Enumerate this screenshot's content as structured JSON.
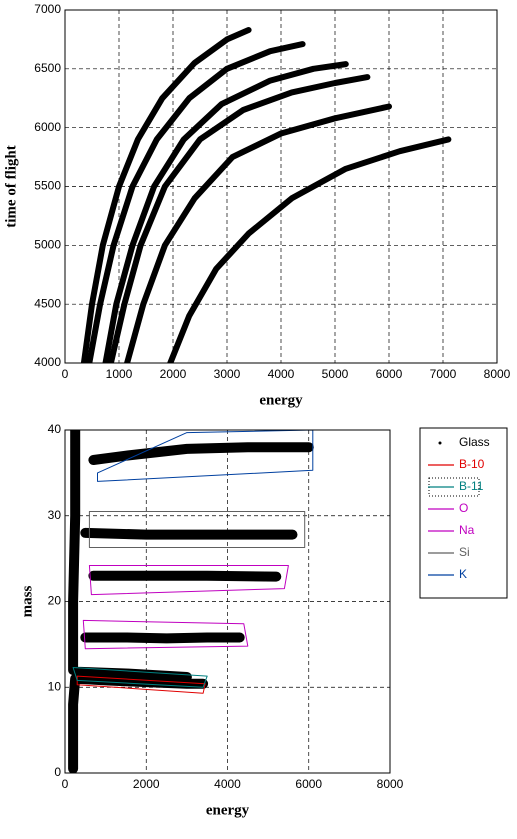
{
  "chart_data": [
    {
      "type": "scatter",
      "xlabel": "energy",
      "ylabel": "time of flight",
      "xlim": [
        0,
        8000
      ],
      "ylim": [
        4000,
        7000
      ],
      "xticks": [
        0,
        1000,
        2000,
        3000,
        4000,
        5000,
        6000,
        7000,
        8000
      ],
      "yticks": [
        4000,
        4500,
        5000,
        5500,
        6000,
        6500,
        7000
      ],
      "grid": true,
      "series": [
        {
          "color": "#000000",
          "marker": "band",
          "x": [
            350,
            500,
            700,
            1000,
            1350,
            1800,
            2400,
            3000,
            3400
          ],
          "values": [
            4000,
            4500,
            5000,
            5500,
            5900,
            6250,
            6550,
            6750,
            6830
          ]
        },
        {
          "color": "#000000",
          "marker": "band",
          "x": [
            450,
            650,
            900,
            1250,
            1700,
            2300,
            3000,
            3800,
            4400
          ],
          "values": [
            4000,
            4500,
            5000,
            5500,
            5900,
            6250,
            6500,
            6650,
            6710
          ]
        },
        {
          "color": "#000000",
          "marker": "band",
          "x": [
            750,
            950,
            1250,
            1650,
            2200,
            2900,
            3800,
            4600,
            5200
          ],
          "values": [
            4000,
            4500,
            5000,
            5500,
            5900,
            6200,
            6400,
            6500,
            6540
          ]
        },
        {
          "color": "#000000",
          "marker": "band",
          "x": [
            850,
            1100,
            1400,
            1850,
            2500,
            3300,
            4200,
            5000,
            5600
          ],
          "values": [
            4000,
            4500,
            5000,
            5500,
            5900,
            6150,
            6300,
            6380,
            6430
          ]
        },
        {
          "color": "#000000",
          "marker": "band",
          "x": [
            1150,
            1450,
            1850,
            2400,
            3100,
            4000,
            5000,
            6000
          ],
          "values": [
            4000,
            4500,
            5000,
            5400,
            5750,
            5950,
            6080,
            6180
          ]
        },
        {
          "color": "#000000",
          "marker": "band",
          "x": [
            1950,
            2300,
            2800,
            3400,
            4200,
            5200,
            6200,
            7100
          ],
          "values": [
            4000,
            4400,
            4800,
            5100,
            5400,
            5650,
            5800,
            5900
          ]
        }
      ]
    },
    {
      "type": "scatter",
      "xlabel": "energy",
      "ylabel": "mass",
      "xlim": [
        0,
        8000
      ],
      "ylim": [
        0,
        40
      ],
      "xticks": [
        0,
        2000,
        4000,
        6000,
        8000
      ],
      "yticks": [
        0,
        10,
        20,
        30,
        40
      ],
      "grid": true,
      "legend": "right",
      "series": [
        {
          "name": "Glass",
          "color": "#000000",
          "marker": "dot",
          "x": [
            300,
            1000,
            2000,
            3000,
            3400,
            null,
            300,
            1500,
            3000,
            null,
            500,
            1500,
            2500,
            3500,
            4300,
            null,
            700,
            2000,
            3500,
            5200,
            null,
            500,
            2000,
            3500,
            5600,
            null,
            700,
            1500,
            3000,
            4500,
            6000,
            null,
            200,
            200,
            250,
            250,
            null,
            200,
            200,
            250
          ],
          "values": [
            11,
            10.8,
            10.6,
            10.4,
            10.4,
            null,
            11.8,
            11.6,
            11.2,
            null,
            15.8,
            15.8,
            15.7,
            15.8,
            15.8,
            null,
            23,
            23,
            23,
            22.9,
            null,
            28,
            27.8,
            27.8,
            27.8,
            null,
            36.5,
            37,
            37.8,
            38,
            38,
            null,
            12,
            20,
            30,
            40,
            null,
            0.5,
            8,
            11
          ]
        },
        {
          "name": "B-10",
          "color": "#e00000",
          "marker": "polygon",
          "x": [
            300,
            3450,
            3400,
            300
          ],
          "values": [
            11.3,
            10.4,
            9.3,
            10.3
          ]
        },
        {
          "name": "B-11",
          "color": "#008080",
          "marker": "polygon",
          "x": [
            200,
            3500,
            3400,
            300
          ],
          "values": [
            12.3,
            11.3,
            10,
            10.8
          ]
        },
        {
          "name": "O",
          "color": "#c000c0",
          "marker": "polygon",
          "x": [
            450,
            4400,
            4500,
            500
          ],
          "values": [
            17.8,
            17.4,
            14.8,
            14.5
          ]
        },
        {
          "name": "Na",
          "color": "#c000c0",
          "marker": "polygon",
          "x": [
            600,
            5500,
            5400,
            650
          ],
          "values": [
            24.2,
            24.2,
            21.5,
            20.8
          ]
        },
        {
          "name": "Si",
          "color": "#606060",
          "marker": "polygon",
          "x": [
            600,
            5900,
            5900,
            600
          ],
          "values": [
            30.5,
            30.5,
            26.3,
            26.3
          ]
        },
        {
          "name": "K",
          "color": "#0040a0",
          "marker": "polygon",
          "x": [
            800,
            3000,
            6100,
            6100,
            800
          ],
          "values": [
            35,
            39.7,
            40,
            35.3,
            34
          ]
        }
      ]
    }
  ]
}
